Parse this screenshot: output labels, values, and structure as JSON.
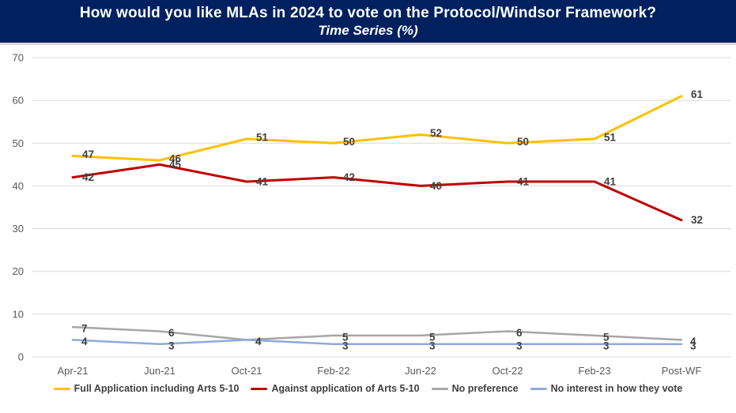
{
  "title": {
    "line1": "How would you like MLAs in 2024 to vote on the Protocol/Windsor Framework?",
    "line2": "Time Series (%)"
  },
  "colors": {
    "title_bar_bg": "#002060",
    "title_text": "#FFFFFF",
    "gridline": "#D9D9D9",
    "axis_label": "#595959",
    "data_label": "#404040",
    "legend_text": "#404040"
  },
  "chart_data": {
    "type": "line",
    "title": "How would you like MLAs in 2024 to vote on the Protocol/Windsor Framework?",
    "subtitle": "Time Series (%)",
    "categories": [
      "Apr-21",
      "Jun-21",
      "Oct-21",
      "Feb-22",
      "Jun-22",
      "Oct-22",
      "Feb-23",
      "Post-WF"
    ],
    "series": [
      {
        "name": "Full Application including Arts 5-10",
        "color": "#FFC000",
        "values": [
          47,
          46,
          51,
          50,
          52,
          50,
          51,
          61
        ]
      },
      {
        "name": "Against application of Arts 5-10",
        "color": "#C00000",
        "values": [
          42,
          45,
          41,
          42,
          40,
          41,
          41,
          32
        ]
      },
      {
        "name": "No preference",
        "color": "#A6A6A6",
        "values": [
          7,
          6,
          4,
          5,
          5,
          6,
          5,
          4
        ]
      },
      {
        "name": "No interest in how they vote",
        "color": "#8EAADB",
        "values": [
          4,
          3,
          4,
          3,
          3,
          3,
          3,
          3
        ]
      }
    ],
    "ylim": [
      0,
      70
    ],
    "yticks": [
      0,
      10,
      20,
      30,
      40,
      50,
      60,
      70
    ],
    "grid": true,
    "data_labels": true,
    "legend_position": "bottom"
  }
}
